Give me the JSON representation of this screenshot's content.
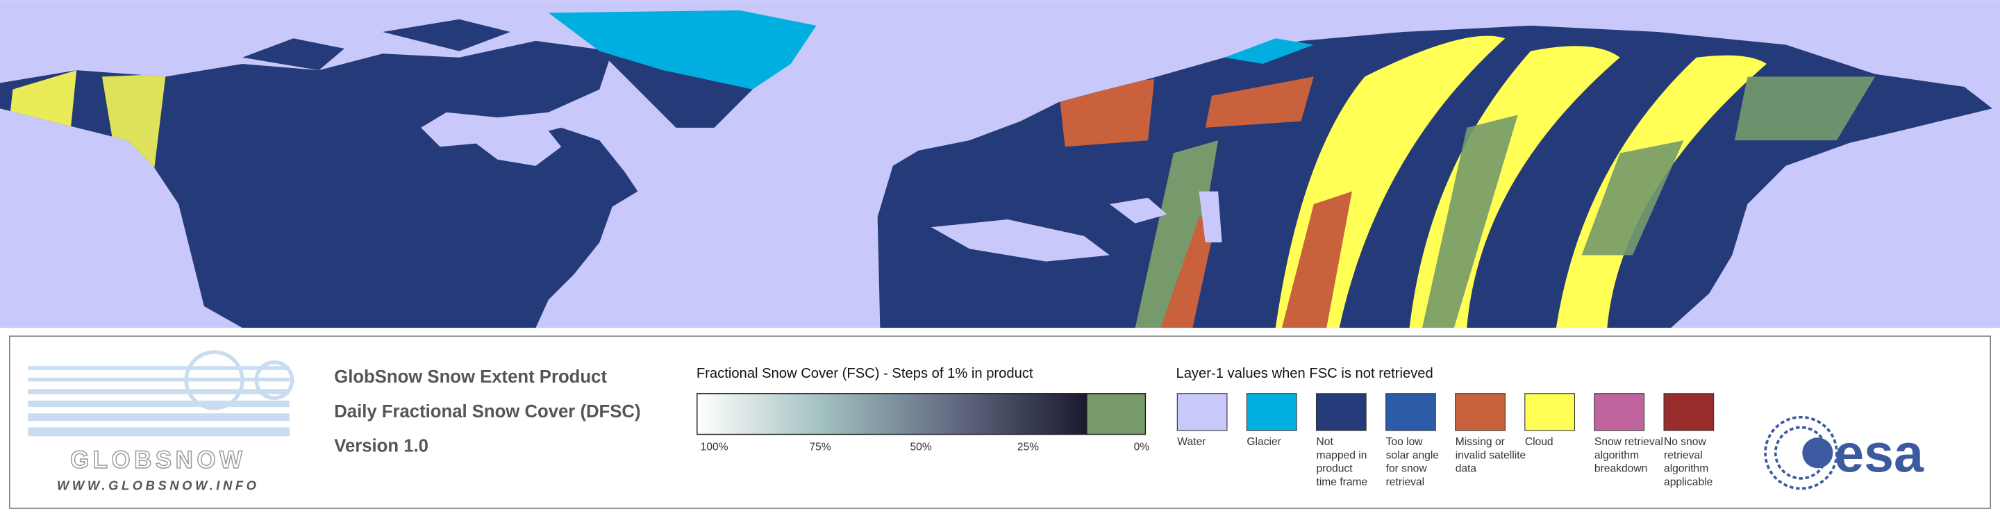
{
  "logo": {
    "name": "GLOBSNOW",
    "url": "WWW.GLOBSNOW.INFO"
  },
  "product": {
    "lines": [
      "GlobSnow Snow Extent Product",
      "Daily Fractional Snow Cover (DFSC)",
      "Version 1.0"
    ]
  },
  "colorbar": {
    "title": "Fractional Snow Cover (FSC) - Steps of 1% in product",
    "labels": [
      "100%",
      "75%",
      "50%",
      "25%",
      "0%"
    ],
    "gradient_colors": [
      "#ffffff",
      "#9fbdbd",
      "#606880",
      "#1a1a2e"
    ],
    "zero_color": "#769a6c"
  },
  "legend": {
    "title": "Layer-1 values when FSC is not retrieved",
    "items": [
      {
        "color": "#c8c8fa",
        "label": [
          "Water"
        ]
      },
      {
        "color": "#00afe0",
        "label": [
          "Glacier"
        ]
      },
      {
        "color": "#253a78",
        "label": [
          "Not",
          "mapped in",
          "product",
          "time frame"
        ]
      },
      {
        "color": "#2c5ca8",
        "label": [
          "Too low",
          "solar angle",
          "for snow",
          "retrieval"
        ]
      },
      {
        "color": "#c9623c",
        "label": [
          "Missing or",
          "invalid satellite",
          "data"
        ]
      },
      {
        "color": "#ffff55",
        "label": [
          "Cloud"
        ]
      },
      {
        "color": "#c0649e",
        "label": [
          "Snow retrieval",
          "algorithm",
          "breakdown"
        ]
      },
      {
        "color": "#9a2c2c",
        "label": [
          "No snow",
          "retrieval",
          "algorithm",
          "applicable"
        ]
      }
    ]
  },
  "esa": "esa"
}
